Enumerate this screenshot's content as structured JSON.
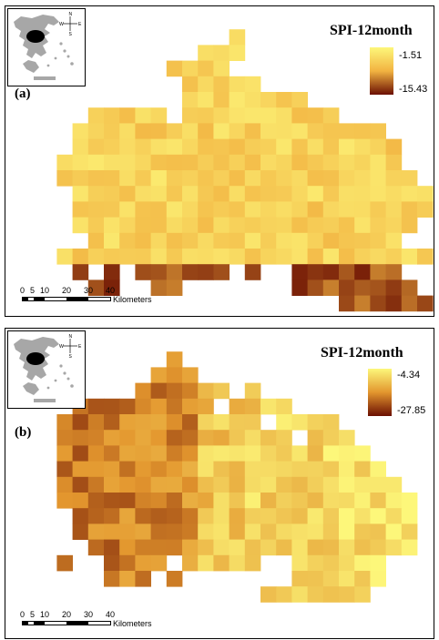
{
  "panels": [
    {
      "id": "a",
      "label": "(a)",
      "legend": {
        "title": "SPI-12month",
        "max": "-1.51",
        "min": "-15.43",
        "color_high": "#fdf77a",
        "color_mid": "#f2b341",
        "color_low": "#6b0f02"
      },
      "scale": {
        "ticks": [
          "0",
          "5",
          "10",
          "20",
          "30",
          "40"
        ],
        "unit": "Kilometers"
      }
    },
    {
      "id": "b",
      "label": "(b)",
      "legend": {
        "title": "SPI-12month",
        "max": "-4.34",
        "min": "-27.85",
        "color_high": "#fdf77a",
        "color_mid": "#e3962e",
        "color_low": "#6b0f02"
      },
      "scale": {
        "ticks": [
          "0",
          "5",
          "10",
          "20",
          "30",
          "40"
        ],
        "unit": "Kilometers"
      }
    }
  ],
  "inset_map": {
    "compass": [
      "N",
      "W",
      "E",
      "S"
    ]
  }
}
